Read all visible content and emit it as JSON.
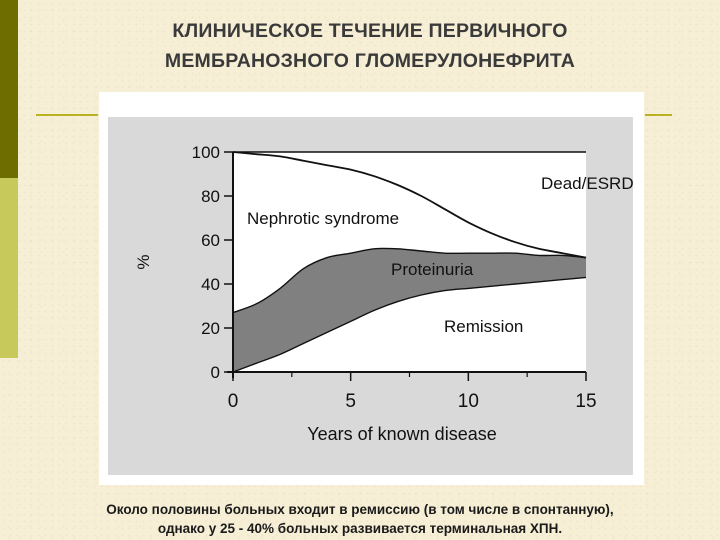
{
  "slide": {
    "title_line1": "КЛИНИЧЕСКОЕ ТЕЧЕНИЕ ПЕРВИЧНОГО",
    "title_line2": "МЕМБРАНОЗНОГО ГЛОМЕРУЛОНЕФРИТА",
    "caption_line1": "Около половины больных входит в ремиссию (в том числе в спонтанную),",
    "caption_line2": "однако у 25 - 40% больных развивается терминальная ХПН."
  },
  "colors": {
    "sidebar_dark": "#6e6e00",
    "sidebar_light": "#c7c95a",
    "rule": "#b9b320",
    "chart_area_gray": "#808080",
    "chart_background": "#d9d9d9"
  },
  "chart_data": {
    "type": "area",
    "xlabel": "Years of known disease",
    "ylabel": "%",
    "xlim": [
      0,
      15
    ],
    "ylim": [
      0,
      100
    ],
    "x_ticks": [
      "0",
      "5",
      "10",
      "15"
    ],
    "y_ticks": [
      "0",
      "20",
      "40",
      "60",
      "80",
      "100"
    ],
    "region_labels": [
      "Dead/ESRD",
      "Nephrotic syndrome",
      "Proteinuria",
      "Remission"
    ],
    "x": [
      0,
      1,
      2,
      3,
      4,
      5,
      6,
      7,
      8,
      9,
      10,
      11,
      12,
      13,
      14,
      15
    ],
    "series": [
      {
        "name": "Remission",
        "values": [
          0,
          4,
          8,
          13,
          18,
          23,
          28,
          32,
          35,
          37,
          38,
          39,
          40,
          41,
          42,
          43
        ]
      },
      {
        "name": "Proteinuria",
        "values": [
          27,
          31,
          38,
          47,
          52,
          54,
          56,
          56,
          55,
          54,
          54,
          54,
          54,
          53,
          53,
          52
        ]
      },
      {
        "name": "Nephrotic syndrome",
        "values": [
          100,
          99,
          98,
          96,
          94,
          92,
          89,
          85,
          80,
          74,
          68,
          63,
          59,
          56,
          54,
          52
        ]
      },
      {
        "name": "Dead/ESRD",
        "values": [
          100,
          100,
          100,
          100,
          100,
          100,
          100,
          100,
          100,
          100,
          100,
          100,
          100,
          100,
          100,
          100
        ]
      }
    ]
  }
}
